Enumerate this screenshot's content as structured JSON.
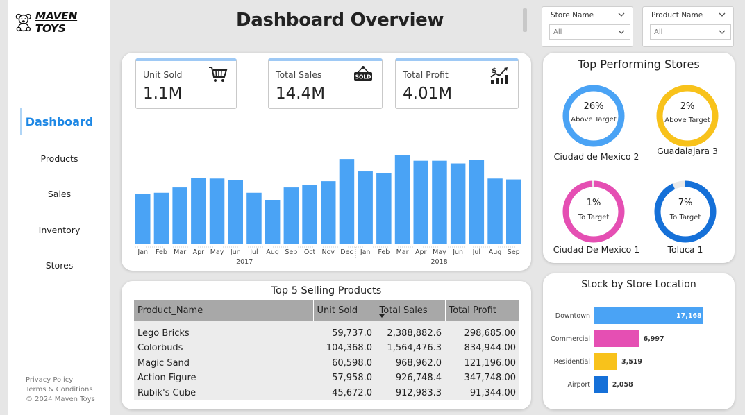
{
  "brand": {
    "name": "MAVEN TOYS",
    "icon": "teddy-bear-icon"
  },
  "nav": {
    "items": [
      {
        "label": "Dashboard",
        "active": true
      },
      {
        "label": "Products",
        "active": false
      },
      {
        "label": "Sales",
        "active": false
      },
      {
        "label": "Inventory",
        "active": false
      },
      {
        "label": "Stores",
        "active": false
      }
    ]
  },
  "footer": {
    "privacy": "Privacy Policy",
    "terms": "Terms & Conditions",
    "copyright": "© 2024 Maven Toys"
  },
  "header": {
    "title": "Dashboard Overview"
  },
  "slicers": [
    {
      "title": "Store Name",
      "value": "All"
    },
    {
      "title": "Product Name",
      "value": "All"
    }
  ],
  "kpis": [
    {
      "label": "Unit Sold",
      "value": "1.1M",
      "icon": "shopping-cart-icon"
    },
    {
      "label": "Total Sales",
      "value": "14.4M",
      "icon": "sold-tag-icon"
    },
    {
      "label": "Total Profit",
      "value": "4.01M",
      "icon": "profit-chart-icon"
    }
  ],
  "chart_data": {
    "type": "bar",
    "categories": [
      "Jan",
      "Feb",
      "Mar",
      "Apr",
      "May",
      "Jun",
      "Jul",
      "Aug",
      "Sep",
      "Oct",
      "Nov",
      "Dec",
      "Jan",
      "Feb",
      "Mar",
      "Apr",
      "May",
      "Jun",
      "Jul",
      "Aug",
      "Sep"
    ],
    "groups": [
      {
        "label": "2017",
        "count": 12
      },
      {
        "label": "2018",
        "count": 9
      }
    ],
    "values": [
      57,
      58,
      64,
      75,
      74,
      72,
      58,
      50,
      64,
      67,
      71,
      96,
      82,
      80,
      100,
      94,
      94,
      91,
      95,
      74,
      73
    ],
    "color": "#4aa3f5",
    "ylim": [
      0,
      100
    ],
    "grid": false,
    "legend": "none"
  },
  "top_products": {
    "title": "Top 5 Selling Products",
    "columns": [
      "Product_Name",
      "Unit Sold",
      "Total Sales",
      "Total Profit"
    ],
    "rows": [
      [
        "Lego Bricks",
        "59,737.0",
        "2,388,882.6",
        "298,685.00"
      ],
      [
        "Colorbuds",
        "104,368.0",
        "1,564,476.3",
        "834,944.00"
      ],
      [
        "Magic Sand",
        "60,598.0",
        "968,962.0",
        "121,196.00"
      ],
      [
        "Action Figure",
        "57,958.0",
        "926,748.4",
        "347,748.00"
      ],
      [
        "Rubik's Cube",
        "45,672.0",
        "912,983.3",
        "91,344.00"
      ]
    ]
  },
  "top_stores": {
    "title": "Top Performing Stores",
    "items": [
      {
        "pct": "26%",
        "status": "Above Target",
        "name": "Ciudad de Mexico 2",
        "color": "#4aa3f5",
        "fill": 1.0
      },
      {
        "pct": "2%",
        "status": "Above Target",
        "name": "Guadalajara 3",
        "color": "#f8c21b",
        "fill": 1.0
      },
      {
        "pct": "1%",
        "status": "To Target",
        "name": "Ciudad De Mexico 1",
        "color": "#e54fb3",
        "fill": 0.99
      },
      {
        "pct": "7%",
        "status": "To Target",
        "name": "Toluca 1",
        "color": "#1570d8",
        "fill": 0.93
      }
    ]
  },
  "stock": {
    "title": "Stock by Store Location",
    "items": [
      {
        "label": "Downtown",
        "value": 17168,
        "display": "17,168",
        "color": "#4aa3f5"
      },
      {
        "label": "Commercial",
        "value": 6997,
        "display": "6,997",
        "color": "#e54fb3"
      },
      {
        "label": "Residential",
        "value": 3519,
        "display": "3,519",
        "color": "#f8c21b"
      },
      {
        "label": "Airport",
        "value": 2058,
        "display": "2,058",
        "color": "#1570d8"
      }
    ]
  }
}
